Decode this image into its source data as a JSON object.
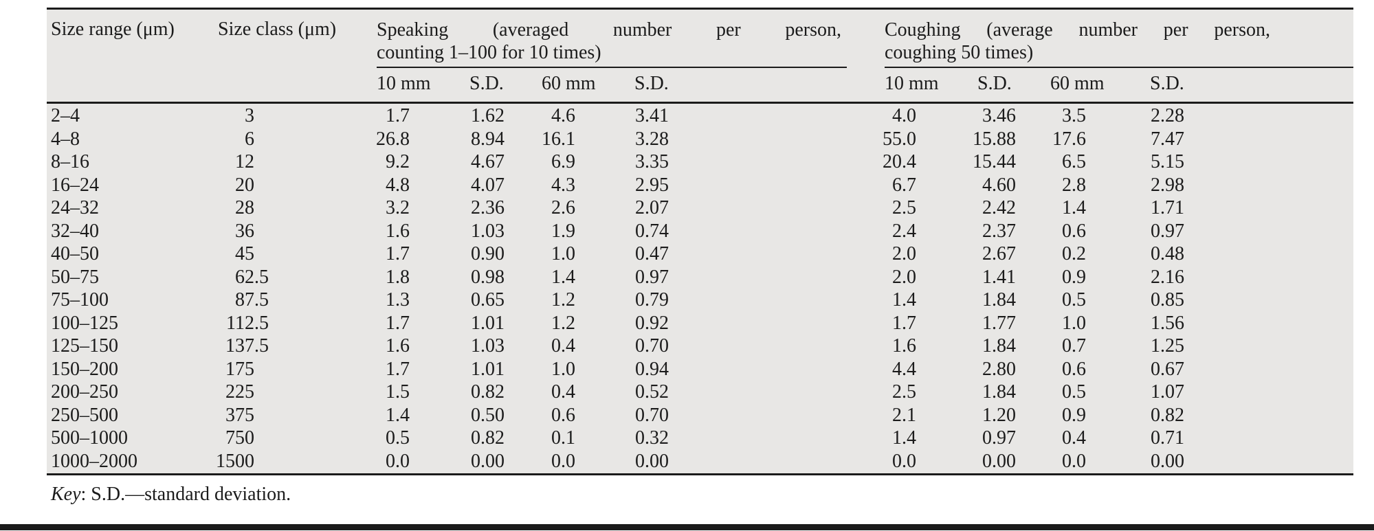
{
  "colors": {
    "table_bg": "#e8e7e5",
    "rule": "#1b1b1b",
    "text": "#1b1b1b"
  },
  "table": {
    "size_range_header": "Size range (μm)",
    "size_class_header": "Size class (μm)",
    "groups": [
      {
        "line1": "Speaking (averaged number per person,",
        "line2": "counting 1–100 for 10 times)",
        "sub": [
          "10 mm",
          "S.D.",
          "60 mm",
          "S.D."
        ]
      },
      {
        "line1": "Coughing (average number per person,",
        "line2": "coughing 50 times)",
        "sub": [
          "10 mm",
          "S.D.",
          "60 mm",
          "S.D."
        ]
      }
    ],
    "columns": [
      "size-range",
      "size-class",
      "speaking-10mm",
      "speaking-sd-10mm",
      "speaking-60mm",
      "speaking-sd-60mm",
      "coughing-10mm",
      "coughing-sd-10mm",
      "coughing-60mm",
      "coughing-sd-60mm"
    ],
    "rows": [
      [
        "2–4",
        "3",
        "1.7",
        "1.62",
        "4.6",
        "3.41",
        "4.0",
        "3.46",
        "3.5",
        "2.28"
      ],
      [
        "4–8",
        "6",
        "26.8",
        "8.94",
        "16.1",
        "3.28",
        "55.0",
        "15.88",
        "17.6",
        "7.47"
      ],
      [
        "8–16",
        "12",
        "9.2",
        "4.67",
        "6.9",
        "3.35",
        "20.4",
        "15.44",
        "6.5",
        "5.15"
      ],
      [
        "16–24",
        "20",
        "4.8",
        "4.07",
        "4.3",
        "2.95",
        "6.7",
        "4.60",
        "2.8",
        "2.98"
      ],
      [
        "24–32",
        "28",
        "3.2",
        "2.36",
        "2.6",
        "2.07",
        "2.5",
        "2.42",
        "1.4",
        "1.71"
      ],
      [
        "32–40",
        "36",
        "1.6",
        "1.03",
        "1.9",
        "0.74",
        "2.4",
        "2.37",
        "0.6",
        "0.97"
      ],
      [
        "40–50",
        "45",
        "1.7",
        "0.90",
        "1.0",
        "0.47",
        "2.0",
        "2.67",
        "0.2",
        "0.48"
      ],
      [
        "50–75",
        "62.5",
        "1.8",
        "0.98",
        "1.4",
        "0.97",
        "2.0",
        "1.41",
        "0.9",
        "2.16"
      ],
      [
        "75–100",
        "87.5",
        "1.3",
        "0.65",
        "1.2",
        "0.79",
        "1.4",
        "1.84",
        "0.5",
        "0.85"
      ],
      [
        "100–125",
        "112.5",
        "1.7",
        "1.01",
        "1.2",
        "0.92",
        "1.7",
        "1.77",
        "1.0",
        "1.56"
      ],
      [
        "125–150",
        "137.5",
        "1.6",
        "1.03",
        "0.4",
        "0.70",
        "1.6",
        "1.84",
        "0.7",
        "1.25"
      ],
      [
        "150–200",
        "175",
        "1.7",
        "1.01",
        "1.0",
        "0.94",
        "4.4",
        "2.80",
        "0.6",
        "0.67"
      ],
      [
        "200–250",
        "225",
        "1.5",
        "0.82",
        "0.4",
        "0.52",
        "2.5",
        "1.84",
        "0.5",
        "1.07"
      ],
      [
        "250–500",
        "375",
        "1.4",
        "0.50",
        "0.6",
        "0.70",
        "2.1",
        "1.20",
        "0.9",
        "0.82"
      ],
      [
        "500–1000",
        "750",
        "0.5",
        "0.82",
        "0.1",
        "0.32",
        "1.4",
        "0.97",
        "0.4",
        "0.71"
      ],
      [
        "1000–2000",
        "1500",
        "0.0",
        "0.00",
        "0.0",
        "0.00",
        "0.0",
        "0.00",
        "0.0",
        "0.00"
      ]
    ]
  },
  "footer": {
    "key_label": "Key",
    "key_rest": ": S.D.—standard deviation."
  }
}
